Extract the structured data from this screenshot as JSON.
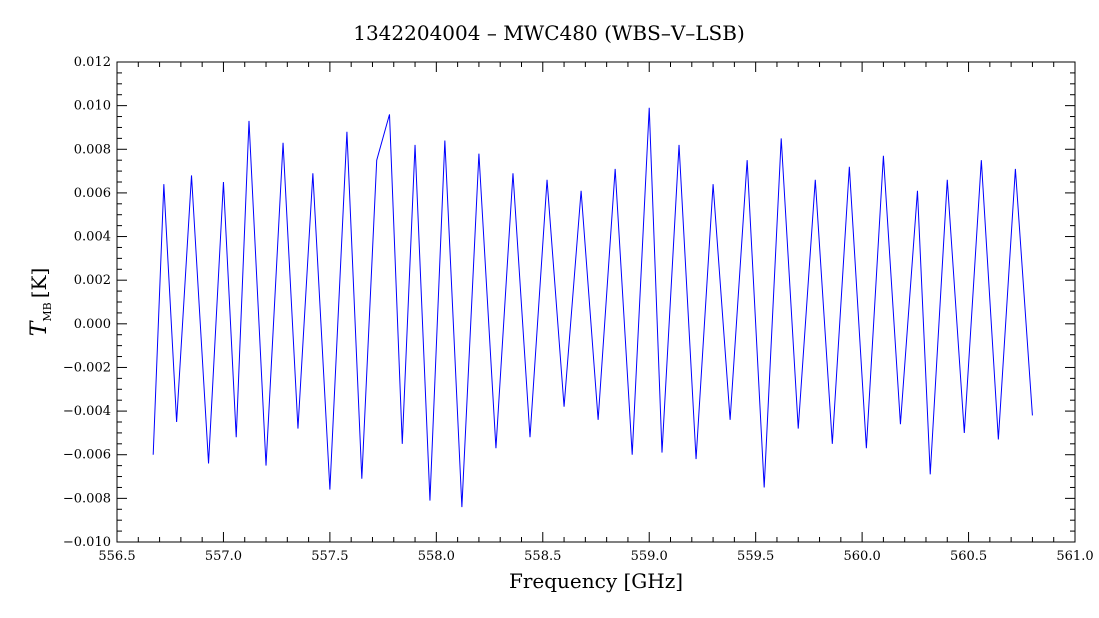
{
  "chart_data": {
    "type": "line",
    "title": "1342204004 – MWC480 (WBS–V–LSB)",
    "xlabel": "Frequency [GHz]",
    "ylabel": {
      "symbol": "T",
      "subscript": "MB",
      "unit": "[K]"
    },
    "xlim": [
      556.5,
      561.0
    ],
    "ylim": [
      -0.01,
      0.012
    ],
    "xticks": [
      "556.5",
      "557.0",
      "557.5",
      "558.0",
      "558.5",
      "559.0",
      "559.5",
      "560.0",
      "560.5",
      "561.0"
    ],
    "yticks": [
      "0.012",
      "0.010",
      "0.008",
      "0.006",
      "0.004",
      "0.002",
      "0.000",
      "-0.002",
      "-0.004",
      "-0.006",
      "-0.008",
      "-0.010"
    ],
    "grid": false,
    "series": [
      {
        "color": "#0000ff",
        "x": [
          556.67,
          556.72,
          556.78,
          556.85,
          556.93,
          557.0,
          557.06,
          557.12,
          557.2,
          557.28,
          557.35,
          557.42,
          557.5,
          557.58,
          557.65,
          557.72,
          557.78,
          557.84,
          557.9,
          557.97,
          558.04,
          558.12,
          558.2,
          558.28,
          558.36,
          558.44,
          558.52,
          558.6,
          558.68,
          558.76,
          558.84,
          558.92,
          559.0,
          559.06,
          559.14,
          559.22,
          559.3,
          559.38,
          559.46,
          559.54,
          559.62,
          559.7,
          559.78,
          559.86,
          559.94,
          560.02,
          560.1,
          560.18,
          560.26,
          560.32,
          560.4,
          560.48,
          560.56,
          560.64,
          560.72,
          560.8
        ],
        "y": [
          -0.006,
          0.0064,
          -0.0045,
          0.0068,
          -0.0064,
          0.0065,
          -0.0052,
          0.0093,
          -0.0065,
          0.0083,
          -0.0048,
          0.0069,
          -0.0076,
          0.0088,
          -0.0071,
          0.0075,
          0.0096,
          -0.0055,
          0.0082,
          -0.0081,
          0.0084,
          -0.0084,
          0.0078,
          -0.0057,
          0.0069,
          -0.0052,
          0.0066,
          -0.0038,
          0.0061,
          -0.0044,
          0.0071,
          -0.006,
          0.0099,
          -0.0059,
          0.0082,
          -0.0062,
          0.0064,
          -0.0044,
          0.0075,
          -0.0075,
          0.0085,
          -0.0048,
          0.0066,
          -0.0055,
          0.0072,
          -0.0057,
          0.0077,
          -0.0046,
          0.0061,
          -0.0069,
          0.0066,
          -0.005,
          0.0075,
          -0.0053,
          0.0071,
          -0.0042
        ]
      }
    ]
  }
}
